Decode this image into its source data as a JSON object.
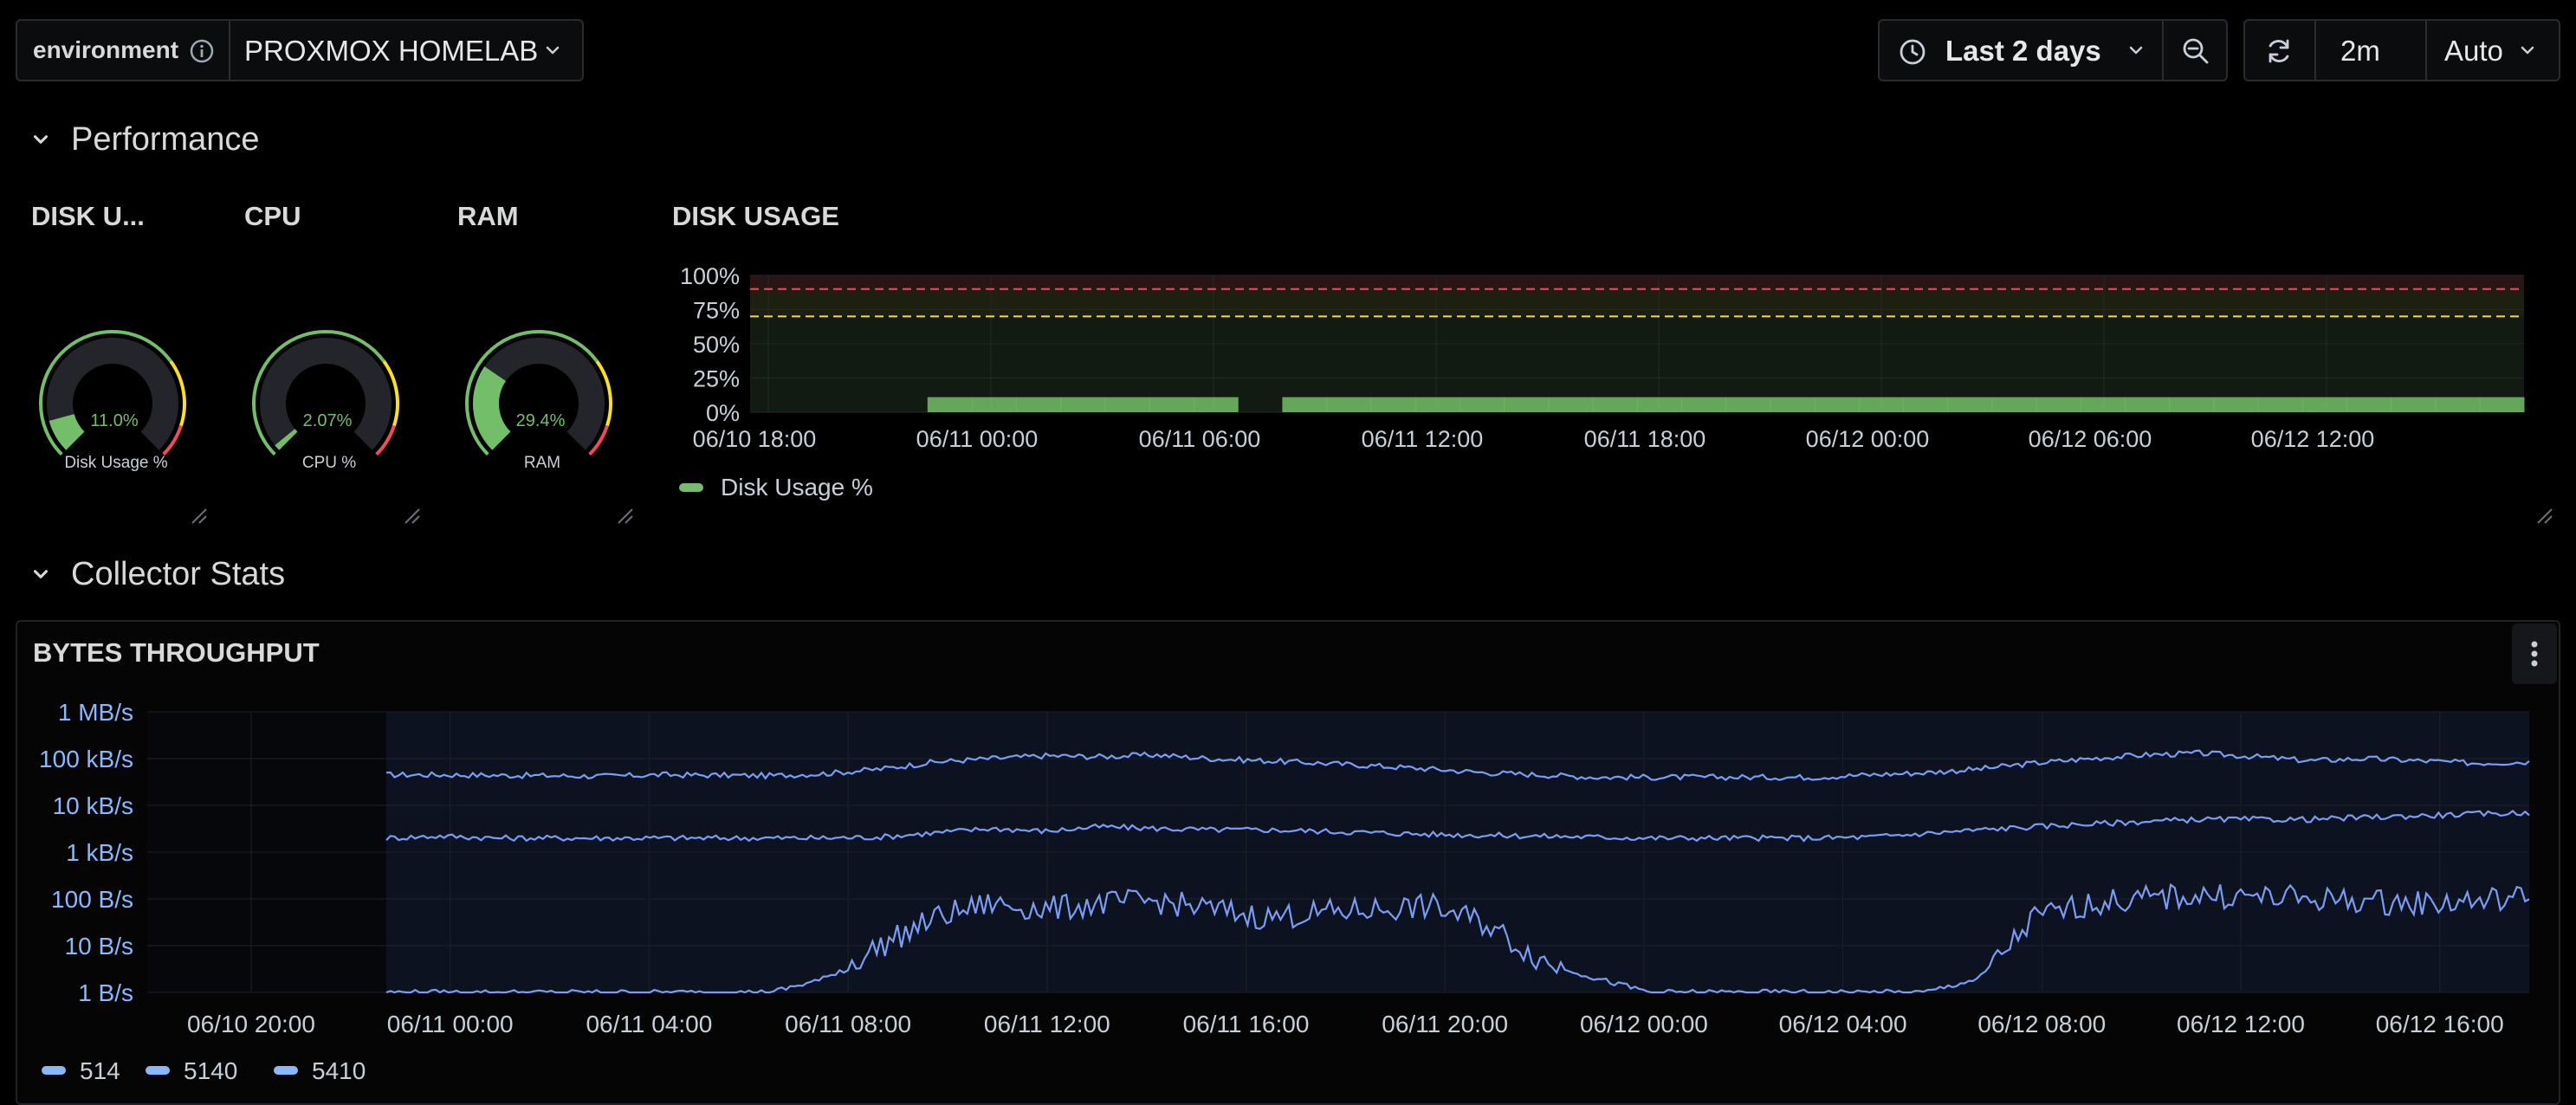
{
  "variables": {
    "environment_label": "environment",
    "environment_value": "PROXMOX HOMELAB"
  },
  "toolbar": {
    "time_range": "Last 2 days",
    "refresh_interval": "2m",
    "refresh_mode": "Auto"
  },
  "rows": {
    "performance": "Performance",
    "collector_stats": "Collector Stats"
  },
  "gauges": [
    {
      "title": "DISK U...",
      "value": 11.0,
      "value_text": "11.0%",
      "label": "Disk Usage %"
    },
    {
      "title": "CPU",
      "value": 2.07,
      "value_text": "2.07%",
      "label": "CPU %"
    },
    {
      "title": "RAM",
      "value": 29.4,
      "value_text": "29.4%",
      "label": "RAM"
    }
  ],
  "colors": {
    "gauge_fill": "#73bf69",
    "threshold_yellow": "#fade2a",
    "threshold_red": "#f2495c",
    "series_blue": "#7b9cf5",
    "legend_blue": "#8ab8ff"
  },
  "chart_data": [
    {
      "type": "area",
      "title": "DISK USAGE",
      "y_ticks": [
        "100%",
        "75%",
        "50%",
        "25%",
        "0%"
      ],
      "ylim": [
        0,
        100
      ],
      "x_ticks": [
        "06/10 18:00",
        "06/11 00:00",
        "06/11 06:00",
        "06/11 12:00",
        "06/11 18:00",
        "06/12 00:00",
        "06/12 06:00",
        "06/12 12:00"
      ],
      "thresholds": [
        {
          "value": 70,
          "color": "#fade2a"
        },
        {
          "value": 90,
          "color": "#f2495c"
        }
      ],
      "series": [
        {
          "name": "Disk Usage %",
          "values": [
            0,
            0,
            0,
            0,
            11,
            11,
            11,
            11,
            11,
            11,
            11,
            0,
            11,
            11,
            11,
            11,
            11,
            11,
            11,
            11,
            11,
            11,
            11,
            11,
            11,
            11,
            11,
            11,
            11,
            11,
            11,
            11,
            11,
            11,
            11,
            11,
            11,
            11,
            11,
            11
          ]
        }
      ],
      "legend": "bottom"
    },
    {
      "type": "line",
      "title": "BYTES THROUGHPUT",
      "y_ticks": [
        "1 MB/s",
        "100 kB/s",
        "10 kB/s",
        "1 kB/s",
        "100 B/s",
        "10 B/s",
        "1 B/s"
      ],
      "y_scale": "log",
      "x_ticks": [
        "06/10 20:00",
        "06/11 00:00",
        "06/11 04:00",
        "06/11 08:00",
        "06/11 12:00",
        "06/11 16:00",
        "06/11 20:00",
        "06/12 00:00",
        "06/12 04:00",
        "06/12 08:00",
        "06/12 12:00",
        "06/12 16:00"
      ],
      "series": [
        {
          "name": "514",
          "values": [
            45000,
            45000,
            44000,
            43000,
            42000,
            45000,
            44000,
            43000,
            48000,
            60000,
            85000,
            100000,
            115000,
            110000,
            120000,
            100000,
            90000,
            80000,
            70000,
            60000,
            50000,
            45000,
            40000,
            40000,
            40000,
            40000,
            40000,
            45000,
            50000,
            60000,
            80000,
            100000,
            120000,
            130000,
            110000,
            90000,
            100000,
            90000,
            80000,
            85000
          ]
        },
        {
          "name": "5140",
          "values": [
            2000,
            2200,
            2000,
            2000,
            2000,
            2000,
            2000,
            2000,
            2000,
            2100,
            2600,
            3200,
            2800,
            3500,
            3200,
            3000,
            3000,
            2800,
            2600,
            2400,
            2300,
            2200,
            2100,
            2000,
            2000,
            2000,
            2000,
            2100,
            2500,
            3000,
            3500,
            4000,
            4500,
            5000,
            5000,
            5000,
            5500,
            6000,
            6500,
            7000
          ]
        },
        {
          "name": "5410",
          "values": [
            1,
            1,
            1,
            1,
            1,
            1,
            1,
            1,
            2,
            10,
            40,
            80,
            60,
            80,
            90,
            60,
            40,
            50,
            60,
            70,
            30,
            5,
            2,
            1,
            1,
            1,
            1,
            1,
            1,
            2,
            40,
            80,
            100,
            120,
            110,
            100,
            90,
            80,
            90,
            110
          ]
        }
      ],
      "legend": "bottom"
    }
  ]
}
